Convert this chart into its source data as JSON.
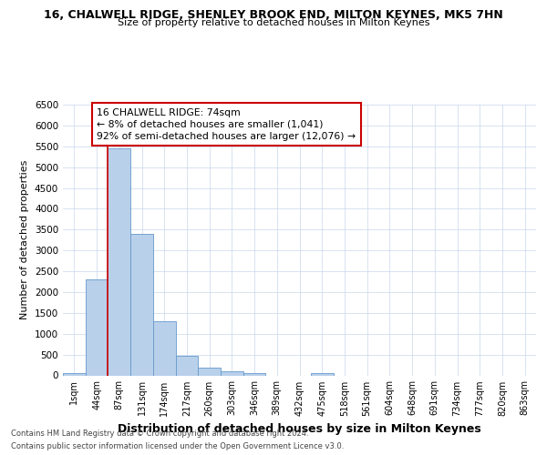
{
  "title": "16, CHALWELL RIDGE, SHENLEY BROOK END, MILTON KEYNES, MK5 7HN",
  "subtitle": "Size of property relative to detached houses in Milton Keynes",
  "xlabel": "Distribution of detached houses by size in Milton Keynes",
  "ylabel": "Number of detached properties",
  "bin_labels": [
    "1sqm",
    "44sqm",
    "87sqm",
    "131sqm",
    "174sqm",
    "217sqm",
    "260sqm",
    "303sqm",
    "346sqm",
    "389sqm",
    "432sqm",
    "475sqm",
    "518sqm",
    "561sqm",
    "604sqm",
    "648sqm",
    "691sqm",
    "734sqm",
    "777sqm",
    "820sqm",
    "863sqm"
  ],
  "bar_values": [
    60,
    2300,
    5450,
    3400,
    1300,
    480,
    190,
    100,
    60,
    0,
    0,
    60,
    0,
    0,
    0,
    0,
    0,
    0,
    0,
    0,
    0
  ],
  "bar_color": "#b8d0ea",
  "bar_edge_color": "#6699cc",
  "property_label": "16 CHALWELL RIDGE: 74sqm",
  "annotation_line1": "← 8% of detached houses are smaller (1,041)",
  "annotation_line2": "92% of semi-detached houses are larger (12,076) →",
  "red_line_color": "#cc0000",
  "ylim": [
    0,
    6500
  ],
  "yticks": [
    0,
    500,
    1000,
    1500,
    2000,
    2500,
    3000,
    3500,
    4000,
    4500,
    5000,
    5500,
    6000,
    6500
  ],
  "footer_line1": "Contains HM Land Registry data © Crown copyright and database right 2024.",
  "footer_line2": "Contains public sector information licensed under the Open Government Licence v3.0.",
  "bg_color": "#ffffff",
  "grid_color": "#c8d8ec"
}
